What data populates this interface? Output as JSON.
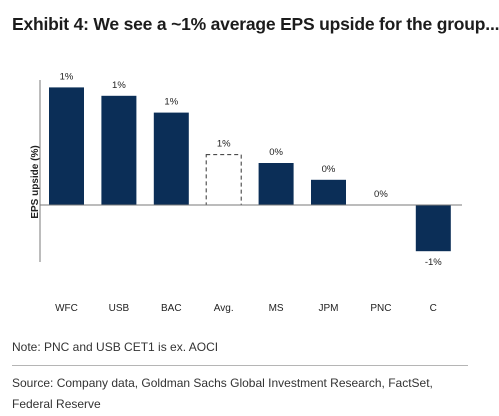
{
  "title": "Exhibit 4: We see a ~1% average EPS upside for the group...",
  "note": "Note: PNC and USB CET1 is ex. AOCI",
  "source": "Source: Company data, Goldman Sachs Global Investment Research, FactSet, Federal Reserve",
  "colors": {
    "bar": "#0b2e57",
    "avg_outline": "#333333"
  },
  "chart_data": {
    "type": "bar",
    "title": "",
    "xlabel": "",
    "ylabel": "EPS upside (%)",
    "categories": [
      "WFC",
      "USB",
      "BAC",
      "Avg.",
      "MS",
      "JPM",
      "PNC",
      "C"
    ],
    "values": [
      1.4,
      1.3,
      1.1,
      0.6,
      0.5,
      0.3,
      0.0,
      -0.55
    ],
    "data_labels": [
      "1%",
      "1%",
      "1%",
      "1%",
      "0%",
      "0%",
      "0%",
      "-1%"
    ],
    "styles": [
      "solid",
      "solid",
      "solid",
      "dashed-outline",
      "solid",
      "solid",
      "solid",
      "solid"
    ],
    "ylim": [
      -0.6,
      1.5
    ],
    "grid": false,
    "legend": "none"
  }
}
